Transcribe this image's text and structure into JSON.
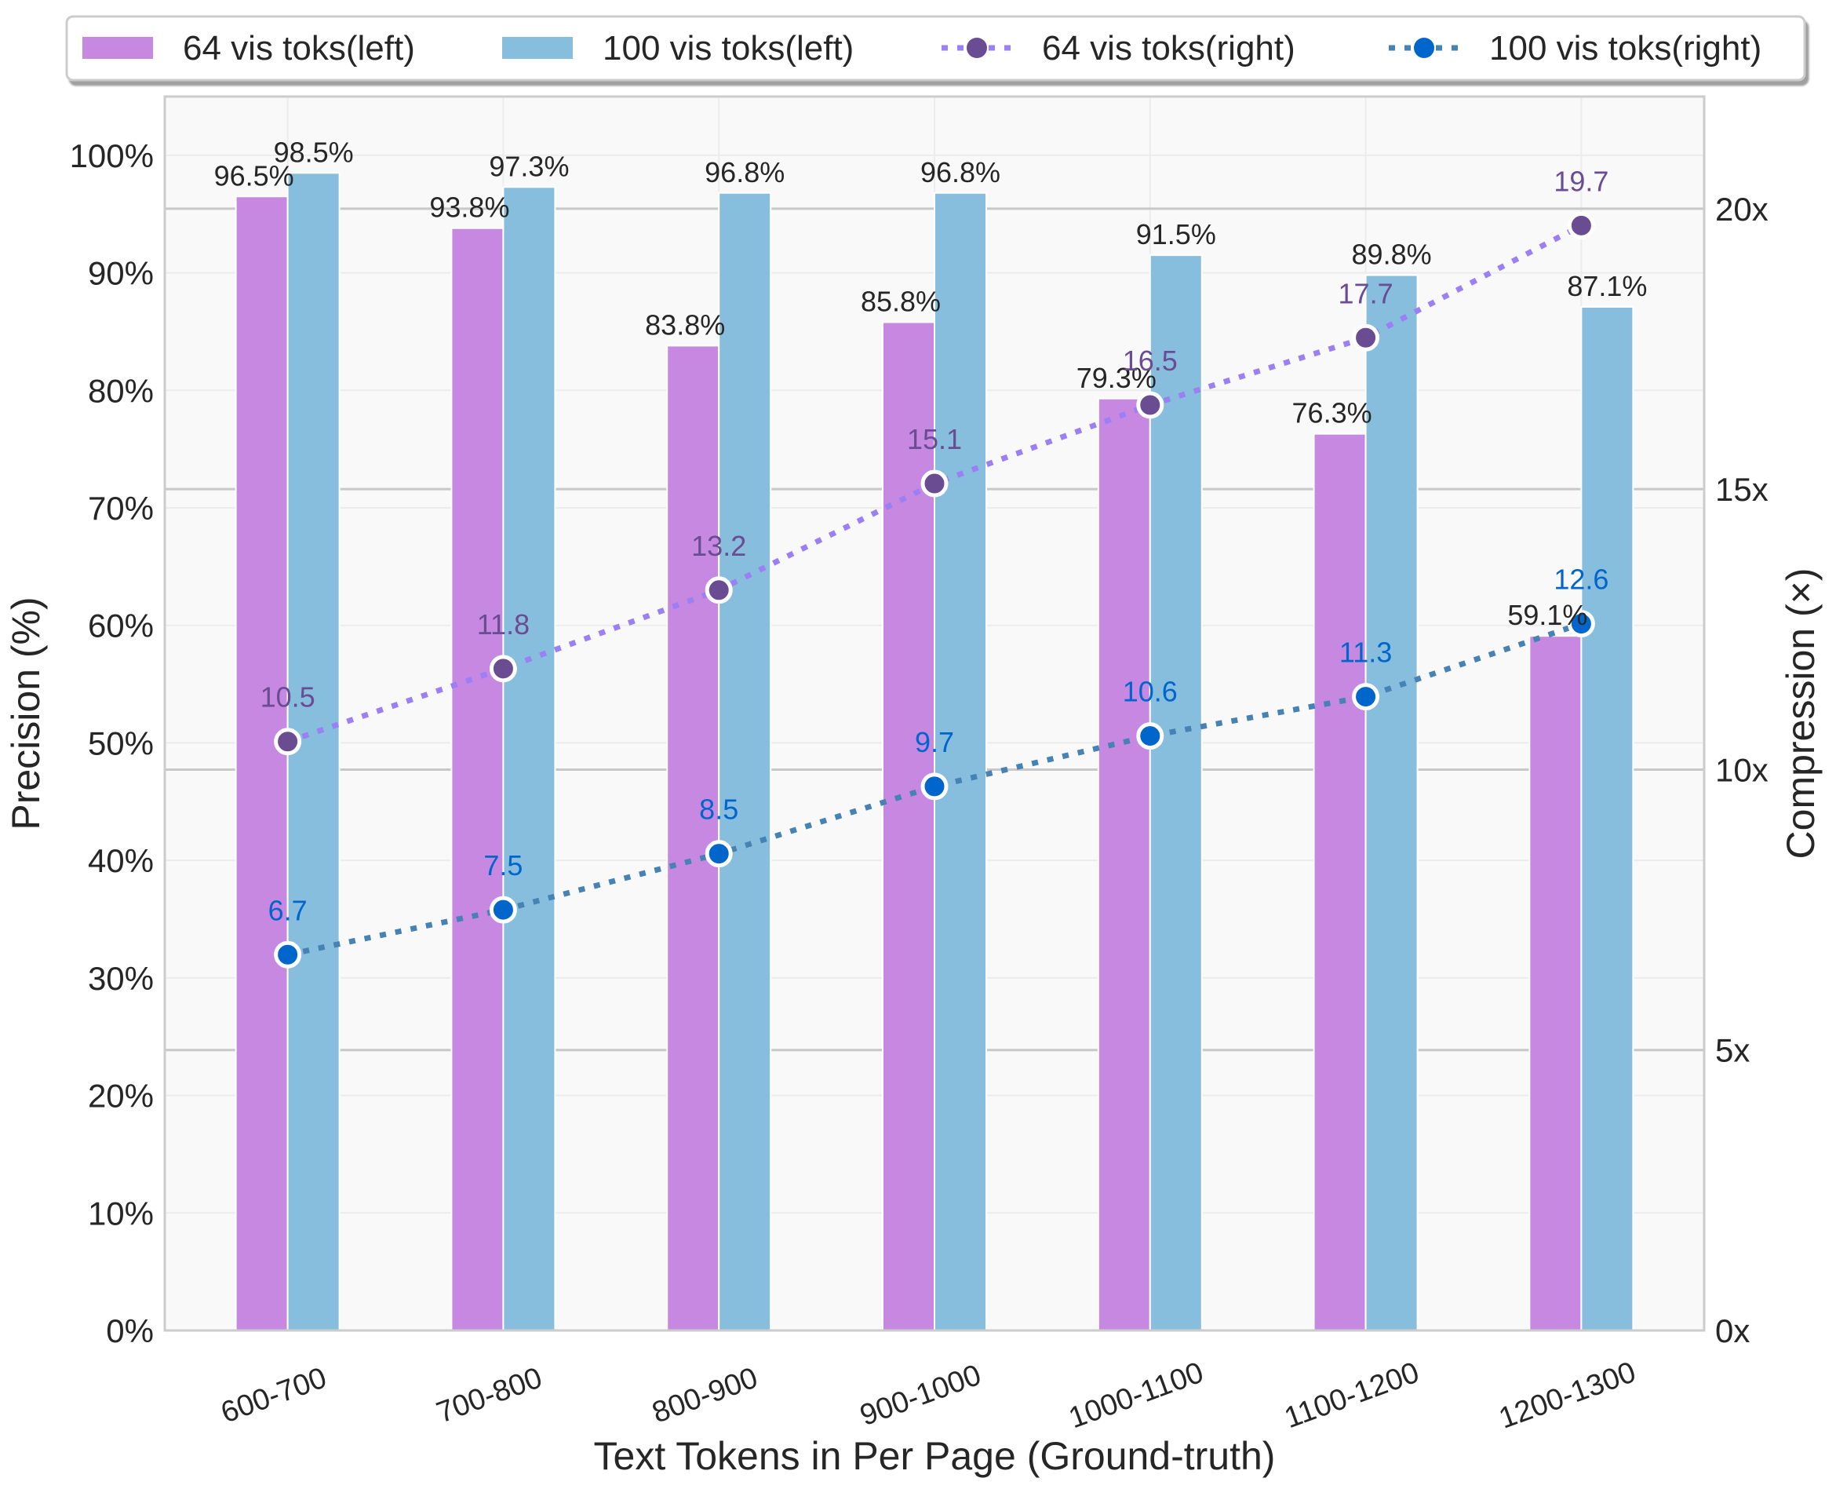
{
  "chart_data": {
    "type": "bar",
    "combo": "bar+line dual-axis",
    "xlabel": "Text Tokens in Per Page (Ground-truth)",
    "ylabel": "Precision (%)",
    "ylabel_right": "Compression (×)",
    "categories": [
      "600-700",
      "700-800",
      "800-900",
      "900-1000",
      "1000-1100",
      "1100-1200",
      "1200-1300"
    ],
    "ylim": [
      0,
      105
    ],
    "ylim_right": [
      0,
      22
    ],
    "yticks": [
      "0%",
      "10%",
      "20%",
      "30%",
      "40%",
      "50%",
      "60%",
      "70%",
      "80%",
      "90%",
      "100%"
    ],
    "yticks_right": [
      "0x",
      "5x",
      "10x",
      "15x",
      "20x"
    ],
    "grid": true,
    "legend_placement": "top",
    "series": [
      {
        "name": "64 vis toks(left)",
        "kind": "bar",
        "axis": "left",
        "color": "#c688e0",
        "values": [
          96.5,
          93.8,
          83.8,
          85.8,
          79.3,
          76.3,
          59.1
        ],
        "labels": [
          "96.5%",
          "93.8%",
          "83.8%",
          "85.8%",
          "79.3%",
          "76.3%",
          "59.1%"
        ]
      },
      {
        "name": "100 vis toks(left)",
        "kind": "bar",
        "axis": "left",
        "color": "#88bedd",
        "values": [
          98.5,
          97.3,
          96.8,
          96.8,
          91.5,
          89.8,
          87.1
        ],
        "labels": [
          "98.5%",
          "97.3%",
          "96.8%",
          "96.8%",
          "91.5%",
          "89.8%",
          "87.1%"
        ]
      },
      {
        "name": "64 vis toks(right)",
        "kind": "line",
        "axis": "right",
        "color": "#9b7ff5",
        "marker_color": "#6a4c93",
        "label_color": "#6a4c93",
        "values": [
          10.5,
          11.8,
          13.2,
          15.1,
          16.5,
          17.7,
          19.7
        ],
        "labels": [
          "10.5",
          "11.8",
          "13.2",
          "15.1",
          "16.5",
          "17.7",
          "19.7"
        ]
      },
      {
        "name": "100 vis toks(right)",
        "kind": "line",
        "axis": "right",
        "color": "#4682b4",
        "marker_color": "#0066cc",
        "label_color": "#0066cc",
        "values": [
          6.7,
          7.5,
          8.5,
          9.7,
          10.6,
          11.3,
          12.6
        ],
        "labels": [
          "6.7",
          "7.5",
          "8.5",
          "9.7",
          "10.6",
          "11.3",
          "12.6"
        ]
      }
    ]
  }
}
